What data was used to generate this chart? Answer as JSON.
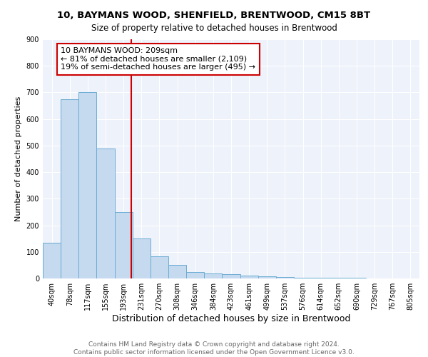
{
  "title1": "10, BAYMANS WOOD, SHENFIELD, BRENTWOOD, CM15 8BT",
  "title2": "Size of property relative to detached houses in Brentwood",
  "xlabel": "Distribution of detached houses by size in Brentwood",
  "ylabel": "Number of detached properties",
  "bar_labels": [
    "40sqm",
    "78sqm",
    "117sqm",
    "155sqm",
    "193sqm",
    "231sqm",
    "270sqm",
    "308sqm",
    "346sqm",
    "384sqm",
    "423sqm",
    "461sqm",
    "499sqm",
    "537sqm",
    "576sqm",
    "614sqm",
    "652sqm",
    "690sqm",
    "729sqm",
    "767sqm",
    "805sqm"
  ],
  "bar_values": [
    135,
    675,
    700,
    490,
    250,
    150,
    83,
    50,
    25,
    20,
    15,
    12,
    7,
    5,
    3,
    3,
    2,
    2,
    1,
    1,
    1
  ],
  "bar_color": "#c5d9ef",
  "bar_edge_color": "#6aacd4",
  "vline_x_index": 4.42,
  "vline_color": "#cc0000",
  "bg_color": "#eef2fa",
  "grid_color": "#ffffff",
  "annotation_box_text": "10 BAYMANS WOOD: 209sqm\n← 81% of detached houses are smaller (2,109)\n19% of semi-detached houses are larger (495) →",
  "footnote": "Contains HM Land Registry data © Crown copyright and database right 2024.\nContains public sector information licensed under the Open Government Licence v3.0.",
  "ylim": [
    0,
    900
  ],
  "yticks": [
    0,
    100,
    200,
    300,
    400,
    500,
    600,
    700,
    800,
    900
  ],
  "title1_fontsize": 9.5,
  "title2_fontsize": 8.5,
  "xlabel_fontsize": 9,
  "ylabel_fontsize": 8,
  "tick_fontsize": 7,
  "annot_fontsize": 8,
  "footnote_fontsize": 6.5
}
